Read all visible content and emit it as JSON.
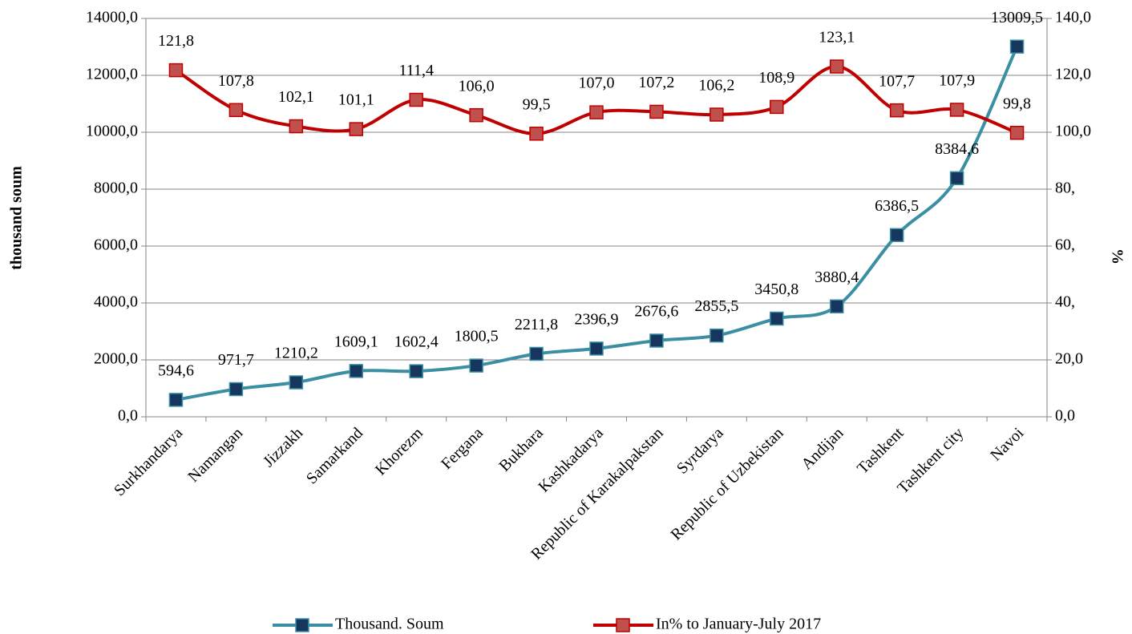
{
  "chart_data": {
    "type": "line",
    "y_label": "thousand soum",
    "y2_label": "%",
    "categories": [
      "Surkhandarya",
      "Namangan",
      "Jizzakh",
      "Samarkand",
      "Khorezm",
      "Fergana",
      "Bukhara",
      "Kashkadarya",
      "Republic of Karakalpakstan",
      "Syrdarya",
      "Republic of Uzbekistan",
      "Andijan",
      "Tashkent",
      "Tashkent city",
      "Navoi"
    ],
    "series": [
      {
        "name": "Thousand. Soum",
        "color": "#3a8fa3",
        "marker_color": "#17365d",
        "values": [
          594.6,
          971.7,
          1210.2,
          1609.1,
          1602.4,
          1800.5,
          2211.8,
          2396.9,
          2676.6,
          2855.5,
          3450.8,
          3880.4,
          6386.5,
          8384.6,
          13009.5
        ],
        "value_labels": [
          "594,6",
          "971,7",
          "1210,2",
          "1609,1",
          "1602,4",
          "1800,5",
          "2211,8",
          "2396,9",
          "2676,6",
          "2855,5",
          "3450,8",
          "3880,4",
          "6386,5",
          "8384,6",
          "13009,5"
        ]
      },
      {
        "name": "In% to January-July 2017",
        "color": "#c00000",
        "marker_color": "#c0504d",
        "axis": "y2",
        "values": [
          121.8,
          107.8,
          102.1,
          101.1,
          111.4,
          106.0,
          99.5,
          107.0,
          107.2,
          106.2,
          108.9,
          123.1,
          107.7,
          107.9,
          99.8
        ],
        "value_labels": [
          "121,8",
          "107,8",
          "102,1",
          "101,1",
          "111,4",
          "106,0",
          "99,5",
          "107,0",
          "107,2",
          "106,2",
          "108,9",
          "123,1",
          "107,7",
          "107,9",
          "99,8"
        ]
      }
    ],
    "ylim": [
      0,
      14000
    ],
    "yticks": [
      {
        "value": 0,
        "label": "0,0"
      },
      {
        "value": 2000,
        "label": "2000,0"
      },
      {
        "value": 4000,
        "label": "4000,0"
      },
      {
        "value": 6000,
        "label": "6000,0"
      },
      {
        "value": 8000,
        "label": "8000,0"
      },
      {
        "value": 10000,
        "label": "10000,0"
      },
      {
        "value": 12000,
        "label": "12000,0"
      },
      {
        "value": 14000,
        "label": "14000,0"
      }
    ],
    "y2lim": [
      0,
      140
    ],
    "y2ticks": [
      {
        "value": 0,
        "label": "0,0"
      },
      {
        "value": 20,
        "label": "20,0"
      },
      {
        "value": 40,
        "label": "40,"
      },
      {
        "value": 60,
        "label": "60,"
      },
      {
        "value": 80,
        "label": "80,"
      },
      {
        "value": 100,
        "label": "100,0"
      },
      {
        "value": 120,
        "label": "120,0"
      },
      {
        "value": 140,
        "label": "140,0"
      }
    ],
    "grid": true,
    "legend": "bottom"
  }
}
